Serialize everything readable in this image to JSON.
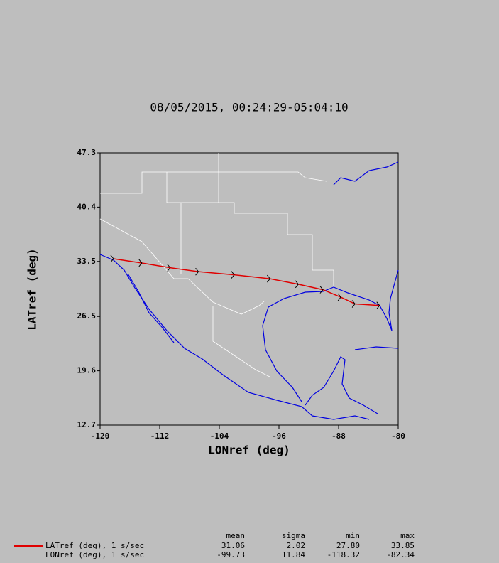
{
  "chart_data": {
    "type": "line",
    "title": "08/05/2015, 00:24:29-05:04:10",
    "x_label": "LONref (deg)",
    "y_label": "LATref (deg)",
    "x": [
      -118.2,
      -114.4,
      -110.6,
      -106.8,
      -102.0,
      -97.2,
      -93.4,
      -90.1,
      -87.7,
      -85.8,
      -82.5
    ],
    "series": [
      {
        "color": "#e00000",
        "values": [
          33.84,
          33.3,
          32.7,
          32.2,
          31.8,
          31.3,
          30.6,
          29.9,
          28.96,
          28.1,
          27.9
        ]
      }
    ],
    "xlim": [
      -120,
      -80
    ],
    "xticks": [
      -120,
      -112,
      -104,
      -96,
      -88,
      -80
    ],
    "ylim": [
      12.7,
      47.3
    ],
    "yticks": [
      12.7,
      19.6,
      26.5,
      33.5,
      40.4,
      47.3
    ]
  },
  "statistics": {
    "columns": [
      "mean",
      "sigma",
      "min",
      "max"
    ],
    "rows": [
      {
        "label": "LATref (deg), 1 s/sec",
        "values": [
          "31.06",
          "2.02",
          "27.80",
          "33.85"
        ]
      },
      {
        "label": "LONref (deg), 1 s/sec",
        "values": [
          "-99.73",
          "11.84",
          "-118.32",
          "-82.34"
        ]
      }
    ]
  }
}
